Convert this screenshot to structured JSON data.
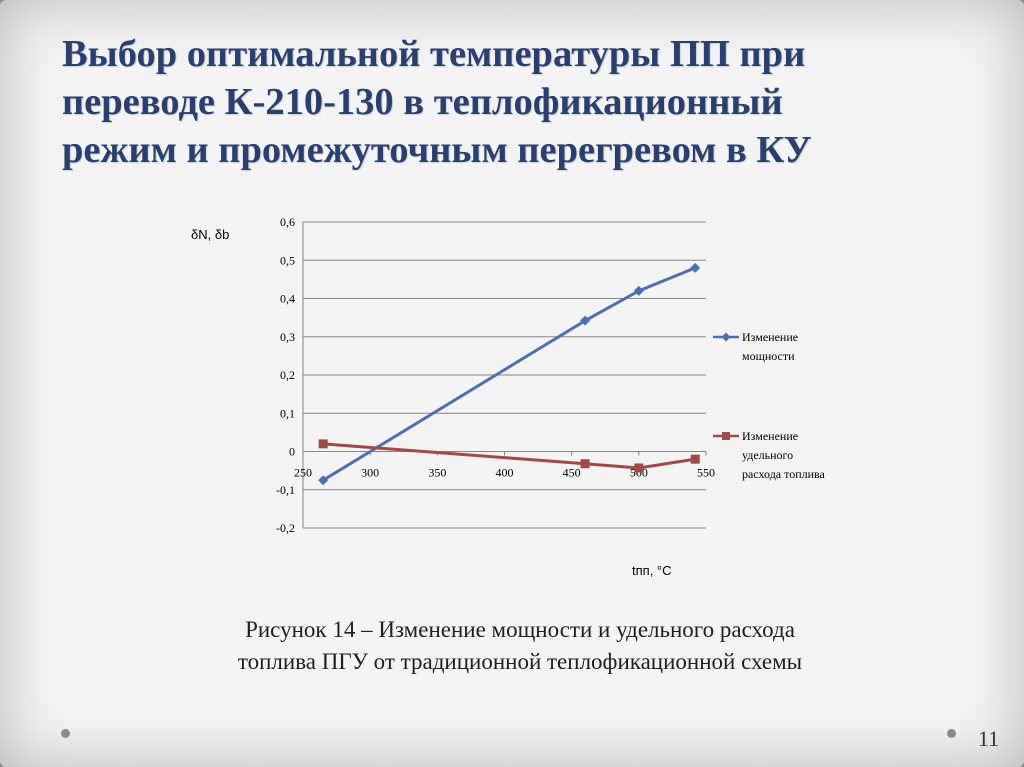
{
  "title_lines": [
    "Выбор оптимальной температуры ПП при",
    "переводе К-210-130 в теплофикационный",
    "режим и промежуточным перегревом в КУ"
  ],
  "chart_data": {
    "type": "line",
    "ylabel": "δN, δb",
    "xlabel": "tпп, °C",
    "xlim": [
      250,
      550
    ],
    "ylim": [
      -0.2,
      0.6
    ],
    "x_ticks": [
      "250",
      "300",
      "350",
      "400",
      "450",
      "500",
      "550"
    ],
    "y_ticks": [
      "0,6",
      "0,5",
      "0,4",
      "0,3",
      "0,2",
      "0,1",
      "0",
      "-0,1",
      "-0,2"
    ],
    "grid": "horizontal",
    "legend_position": "right",
    "series": [
      {
        "name_lines": [
          "Изменение",
          "мощности"
        ],
        "color": "#4f6fb1",
        "marker": "diamond",
        "x": [
          265,
          460,
          500,
          542
        ],
        "y": [
          -0.075,
          0.342,
          0.42,
          0.48
        ]
      },
      {
        "name_lines": [
          "Изменение",
          "удельного",
          "расхода топлива"
        ],
        "color": "#a04a47",
        "marker": "square",
        "x": [
          265,
          460,
          500,
          542
        ],
        "y": [
          0.02,
          -0.032,
          -0.043,
          -0.02
        ]
      }
    ]
  },
  "caption_lines": [
    "Рисунок 14 – Изменение мощности и удельного расхода",
    "топлива ПГУ от традиционной теплофикационной схемы"
  ],
  "page_number": "11",
  "colors": {
    "title": "#2a3f6e",
    "axis": "#868686",
    "grid": "#868686"
  }
}
